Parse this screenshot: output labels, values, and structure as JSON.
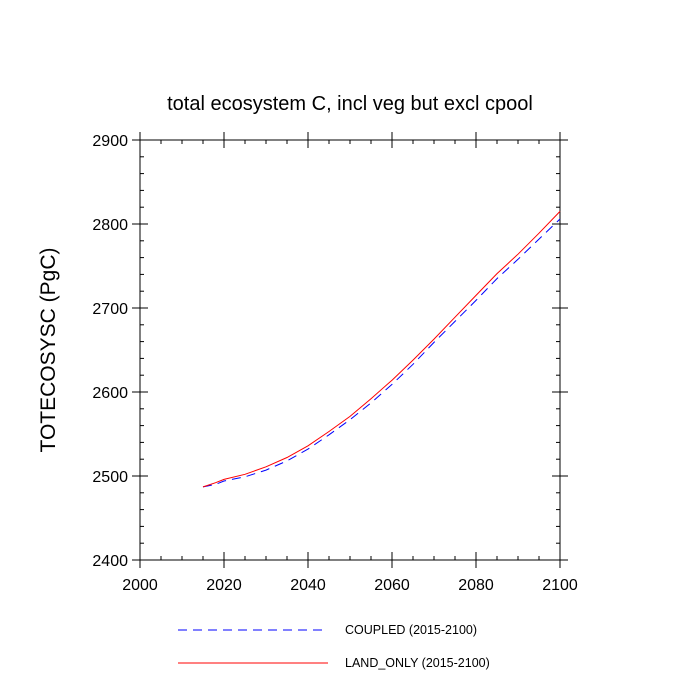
{
  "chart_data": {
    "type": "line",
    "title": "total ecosystem C, incl veg but excl cpool",
    "xlabel": "",
    "ylabel": "TOTECOSYSC  (PgC)",
    "xlim": [
      2000,
      2100
    ],
    "ylim": [
      2400,
      2900
    ],
    "xticks": [
      2000,
      2020,
      2040,
      2060,
      2080,
      2100
    ],
    "yticks": [
      2400,
      2500,
      2600,
      2700,
      2800,
      2900
    ],
    "x_minor_step": 5,
    "y_minor_step": 20,
    "grid": false,
    "legend_position": "bottom",
    "series": [
      {
        "name": "COUPLED (2015-2100)",
        "color": "#0000ff",
        "style": "dashed",
        "x": [
          2015,
          2018,
          2020,
          2025,
          2030,
          2035,
          2040,
          2045,
          2050,
          2055,
          2060,
          2065,
          2070,
          2075,
          2080,
          2085,
          2090,
          2095,
          2100
        ],
        "values": [
          2487,
          2490,
          2494,
          2499,
          2507,
          2518,
          2532,
          2549,
          2567,
          2587,
          2609,
          2633,
          2659,
          2684,
          2709,
          2735,
          2758,
          2782,
          2806
        ]
      },
      {
        "name": "LAND_ONLY (2015-2100)",
        "color": "#ff0000",
        "style": "solid",
        "x": [
          2015,
          2018,
          2020,
          2025,
          2030,
          2035,
          2040,
          2045,
          2050,
          2055,
          2060,
          2065,
          2070,
          2075,
          2080,
          2085,
          2090,
          2095,
          2100
        ],
        "values": [
          2487,
          2492,
          2496,
          2502,
          2511,
          2522,
          2536,
          2553,
          2571,
          2592,
          2614,
          2638,
          2663,
          2689,
          2715,
          2741,
          2764,
          2789,
          2815
        ]
      }
    ]
  }
}
